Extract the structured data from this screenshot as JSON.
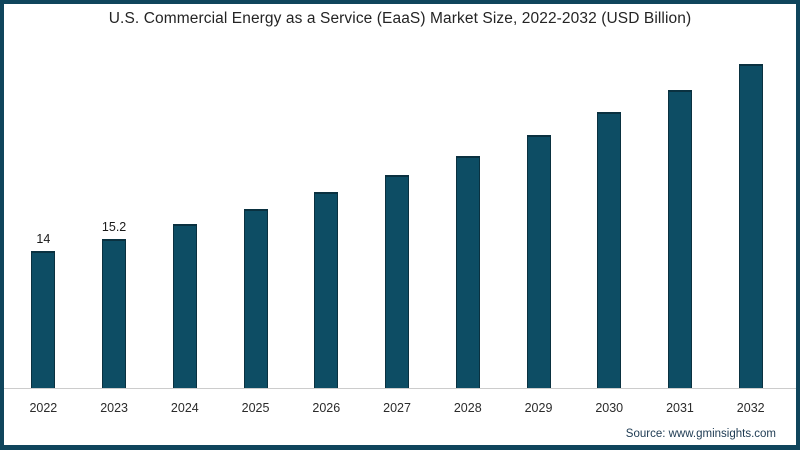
{
  "chart_data": {
    "type": "bar",
    "title": "U.S. Commercial Energy as a Service (EaaS) Market Size, 2022-2032 (USD Billion)",
    "categories": [
      "2022",
      "2023",
      "2024",
      "2025",
      "2026",
      "2027",
      "2028",
      "2029",
      "2030",
      "2031",
      "2032"
    ],
    "values": [
      14,
      15.2,
      16.7,
      18.2,
      19.9,
      21.7,
      23.6,
      25.7,
      28.0,
      30.3,
      32.9
    ],
    "data_labels": [
      "14",
      "15.2",
      "",
      "",
      "",
      "",
      "",
      "",
      "",
      "",
      ""
    ],
    "xlabel": "",
    "ylabel": "",
    "ylim": [
      0,
      34
    ],
    "grid": false,
    "legend": "none",
    "bar_color": "#0d4d64",
    "bar_edge_color": "#0a3140",
    "frame_border_color": "#0f455c",
    "axis_line_color": "#cccccc",
    "source": "Source: www.gminsights.com"
  }
}
